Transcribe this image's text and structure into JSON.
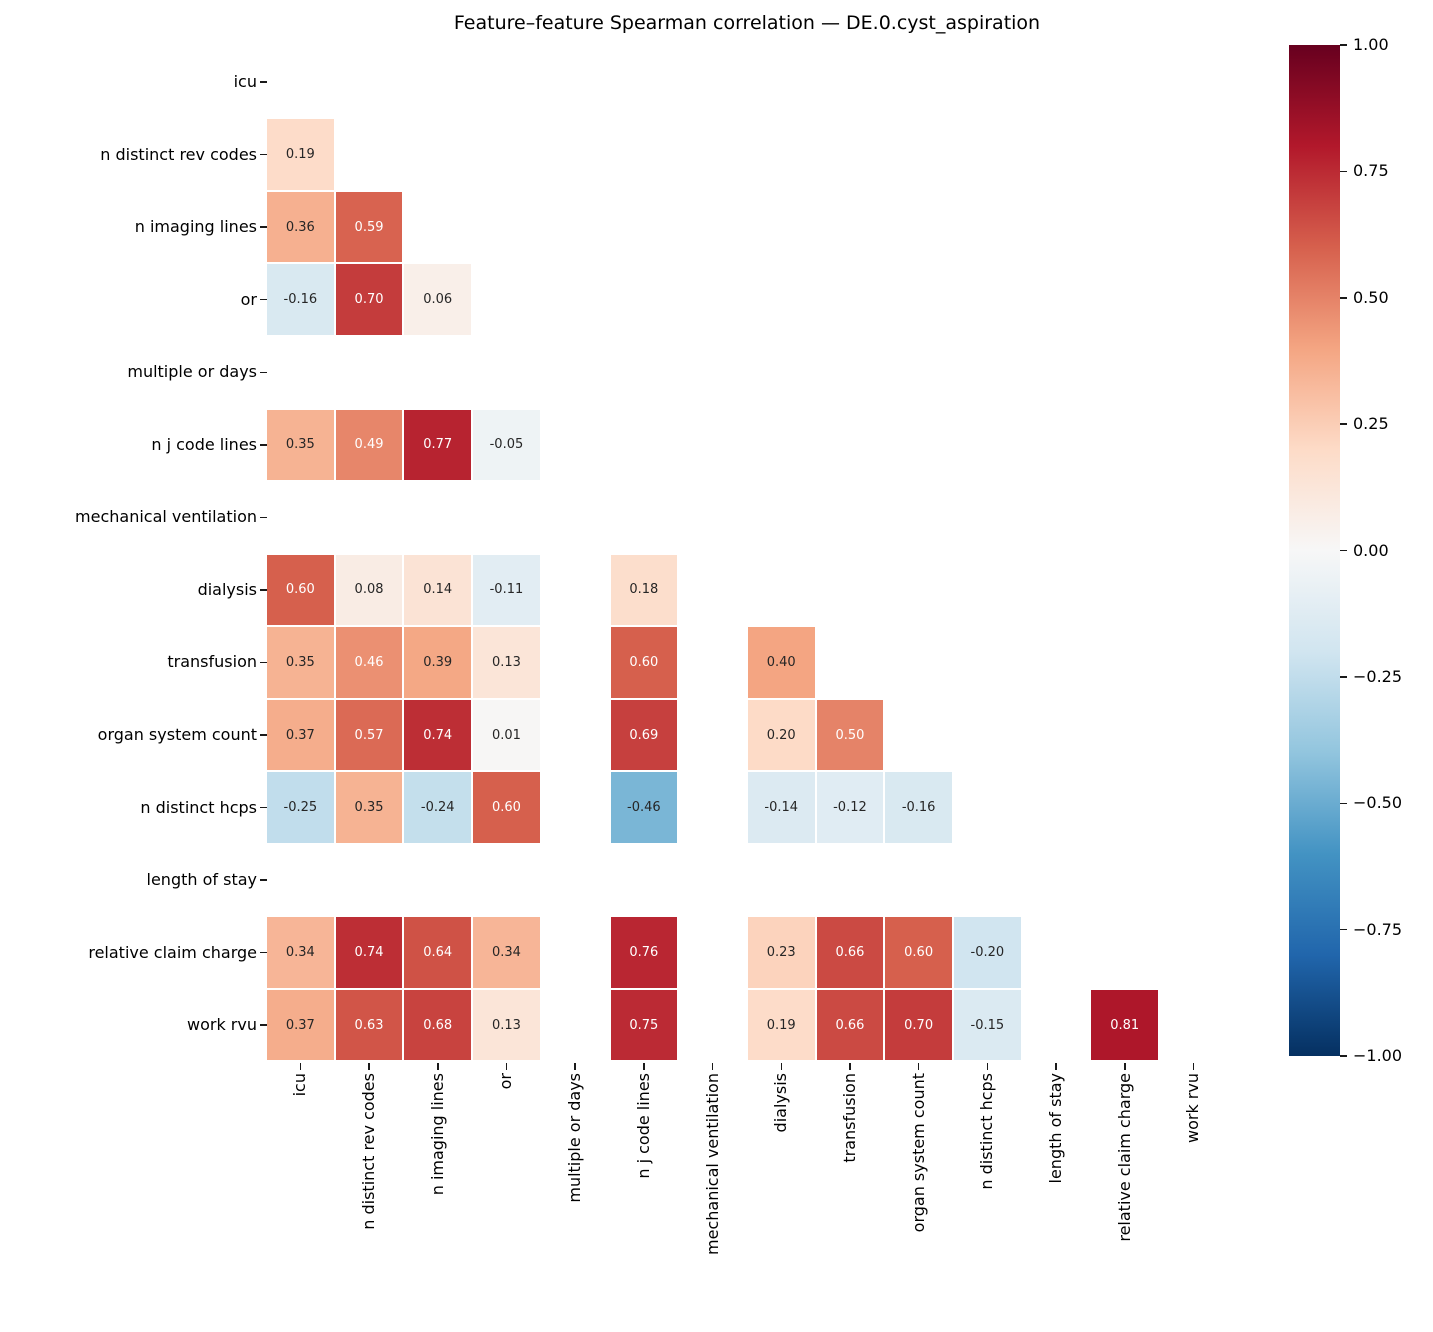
{
  "title": "Feature–feature Spearman correlation — DE.0.cyst_aspiration",
  "chart_data": {
    "type": "heatmap",
    "title": "Feature–feature Spearman correlation — DE.0.cyst_aspiration",
    "subtitle": "",
    "triangle": "lower-without-diagonal",
    "value_format": "2-decimals",
    "vmin": -1,
    "vmax": 1,
    "features": [
      "icu",
      "n distinct rev codes",
      "n imaging lines",
      "or",
      "multiple or days",
      "n j code lines",
      "mechanical ventilation",
      "dialysis",
      "transfusion",
      "organ system count",
      "n distinct hcps",
      "length of stay",
      "relative claim charge",
      "work rvu"
    ],
    "rows": [
      {
        "feature": "icu",
        "values": []
      },
      {
        "feature": "n distinct rev codes",
        "values": [
          0.19
        ]
      },
      {
        "feature": "n imaging lines",
        "values": [
          0.36,
          0.59
        ]
      },
      {
        "feature": "or",
        "values": [
          -0.16,
          0.7,
          0.06
        ]
      },
      {
        "feature": "multiple or days",
        "values": [
          null,
          null,
          null,
          null
        ]
      },
      {
        "feature": "n j code lines",
        "values": [
          0.35,
          0.49,
          0.77,
          -0.05,
          null
        ]
      },
      {
        "feature": "mechanical ventilation",
        "values": [
          null,
          null,
          null,
          null,
          null,
          null
        ]
      },
      {
        "feature": "dialysis",
        "values": [
          0.6,
          0.08,
          0.14,
          -0.11,
          null,
          0.18,
          null
        ]
      },
      {
        "feature": "transfusion",
        "values": [
          0.35,
          0.46,
          0.39,
          0.13,
          null,
          0.6,
          null,
          0.4
        ]
      },
      {
        "feature": "organ system count",
        "values": [
          0.37,
          0.57,
          0.74,
          0.01,
          null,
          0.69,
          null,
          0.2,
          0.5
        ]
      },
      {
        "feature": "n distinct hcps",
        "values": [
          -0.25,
          0.35,
          -0.24,
          0.6,
          null,
          -0.46,
          null,
          -0.14,
          -0.12,
          -0.16
        ]
      },
      {
        "feature": "length of stay",
        "values": [
          null,
          null,
          null,
          null,
          null,
          null,
          null,
          null,
          null,
          null,
          null
        ]
      },
      {
        "feature": "relative claim charge",
        "values": [
          0.34,
          0.74,
          0.64,
          0.34,
          null,
          0.76,
          null,
          0.23,
          0.66,
          0.6,
          -0.2,
          null
        ]
      },
      {
        "feature": "work rvu",
        "values": [
          0.37,
          0.63,
          0.68,
          0.13,
          null,
          0.75,
          null,
          0.19,
          0.66,
          0.7,
          -0.15,
          null,
          0.81
        ]
      }
    ],
    "colormap": {
      "name": "RdBu_r",
      "anchors": [
        {
          "v": 1.0,
          "c": "#67001f"
        },
        {
          "v": 0.8,
          "c": "#b2182b"
        },
        {
          "v": 0.6,
          "c": "#d6604d"
        },
        {
          "v": 0.4,
          "c": "#f4a582"
        },
        {
          "v": 0.2,
          "c": "#fddbc7"
        },
        {
          "v": 0.0,
          "c": "#f7f7f7"
        },
        {
          "v": -0.2,
          "c": "#d1e5f0"
        },
        {
          "v": -0.4,
          "c": "#92c5de"
        },
        {
          "v": -0.6,
          "c": "#4393c3"
        },
        {
          "v": -0.8,
          "c": "#2166ac"
        },
        {
          "v": -1.0,
          "c": "#053061"
        }
      ],
      "annotation_text_dark": "#262626",
      "annotation_text_light": "#ffffff",
      "luminance_threshold": 0.408
    },
    "colorbar": {
      "position": "right",
      "tick_labels": [
        "1.00",
        "0.75",
        "0.50",
        "0.25",
        "0.00",
        "−0.25",
        "−0.50",
        "−0.75",
        "−1.00"
      ]
    },
    "grid": false,
    "cell_border_color": "#ffffff"
  }
}
